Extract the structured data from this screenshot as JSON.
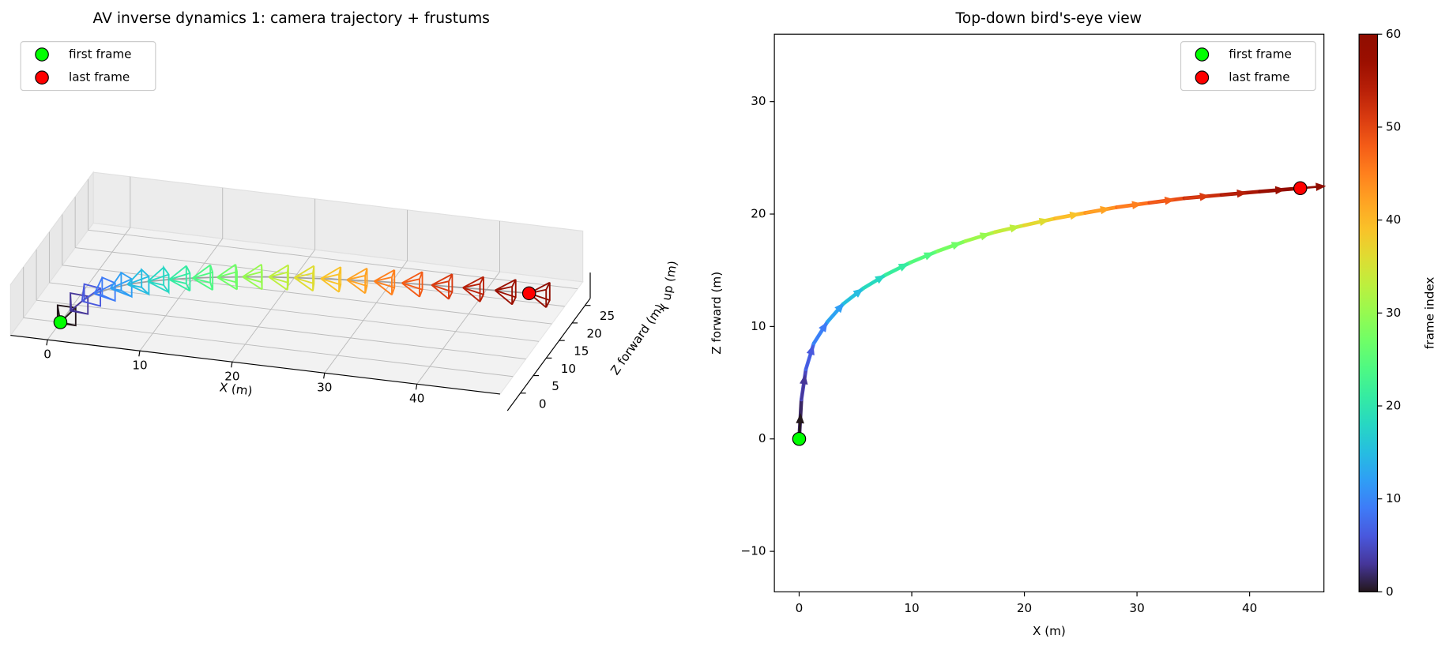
{
  "chart_data": [
    {
      "type": "trajectory3d",
      "title": "AV inverse dynamics 1: camera trajectory + frustums",
      "xlabel": "X (m)",
      "zlabel": "Z forward (m)",
      "ylabel": "Y up (m)",
      "colormap": "turbo",
      "clim": [
        0,
        60
      ],
      "frames": [
        0,
        3,
        6,
        9,
        12,
        15,
        18,
        21,
        24,
        27,
        30,
        33,
        36,
        39,
        42,
        45,
        48,
        51,
        54,
        57,
        60
      ],
      "x": [
        0,
        0.2,
        0.6,
        1.3,
        2.5,
        3.9,
        5.7,
        7.7,
        9.9,
        12.3,
        14.8,
        17.4,
        20.0,
        22.7,
        25.4,
        28.2,
        31.1,
        34.2,
        37.5,
        40.9,
        44.5
      ],
      "z": [
        0,
        3.5,
        6.2,
        8.5,
        10.4,
        12.0,
        13.4,
        14.6,
        15.7,
        16.7,
        17.6,
        18.4,
        19.0,
        19.6,
        20.1,
        20.6,
        21.0,
        21.4,
        21.7,
        22.0,
        22.3
      ],
      "line_color": "#a0a0a0",
      "series": [
        {
          "name": "first frame",
          "color": "#00ff00",
          "x": [
            0
          ],
          "z": [
            0
          ]
        },
        {
          "name": "last frame",
          "color": "#ff0000",
          "x": [
            44.5
          ],
          "z": [
            22.3
          ]
        }
      ],
      "xlim": [
        -4,
        49
      ],
      "xticks": [
        0,
        10,
        20,
        30,
        40
      ],
      "zlim": [
        -5,
        27
      ],
      "zticks": [
        0,
        5,
        10,
        15,
        20,
        25
      ],
      "grid": true,
      "legend": "upper left"
    },
    {
      "type": "quiver",
      "title": "Top-down bird's-eye view",
      "xlabel": "X (m)",
      "ylabel": "Z forward (m)",
      "colormap": "turbo",
      "frames": [
        0,
        3,
        6,
        9,
        12,
        15,
        18,
        21,
        24,
        27,
        30,
        33,
        36,
        39,
        42,
        45,
        48,
        51,
        54,
        57,
        60
      ],
      "x": [
        0,
        0.2,
        0.6,
        1.3,
        2.5,
        3.9,
        5.7,
        7.7,
        9.9,
        12.3,
        14.8,
        17.4,
        20.0,
        22.7,
        25.4,
        28.2,
        31.1,
        34.2,
        37.5,
        40.9,
        44.5
      ],
      "z": [
        0,
        3.5,
        6.2,
        8.5,
        10.4,
        12.0,
        13.4,
        14.6,
        15.7,
        16.7,
        17.6,
        18.4,
        19.0,
        19.6,
        20.1,
        20.6,
        21.0,
        21.4,
        21.7,
        22.0,
        22.3
      ],
      "series": [
        {
          "name": "first frame",
          "color": "#00ff00",
          "x": [
            0
          ],
          "z": [
            0
          ]
        },
        {
          "name": "last frame",
          "color": "#ff0000",
          "x": [
            44.5
          ],
          "z": [
            22.3
          ]
        }
      ],
      "xlim": [
        -2.2,
        46.6
      ],
      "xticks": [
        0,
        10,
        20,
        30,
        40
      ],
      "ylim": [
        -13.6,
        36
      ],
      "yticks": [
        {
          "value": -10,
          "label": "−10"
        },
        0,
        10,
        20,
        30
      ],
      "legend": "upper right",
      "colorbar": {
        "label": "frame index",
        "lim": [
          0,
          60
        ],
        "ticks": [
          0,
          10,
          20,
          30,
          40,
          50,
          60
        ]
      }
    }
  ]
}
